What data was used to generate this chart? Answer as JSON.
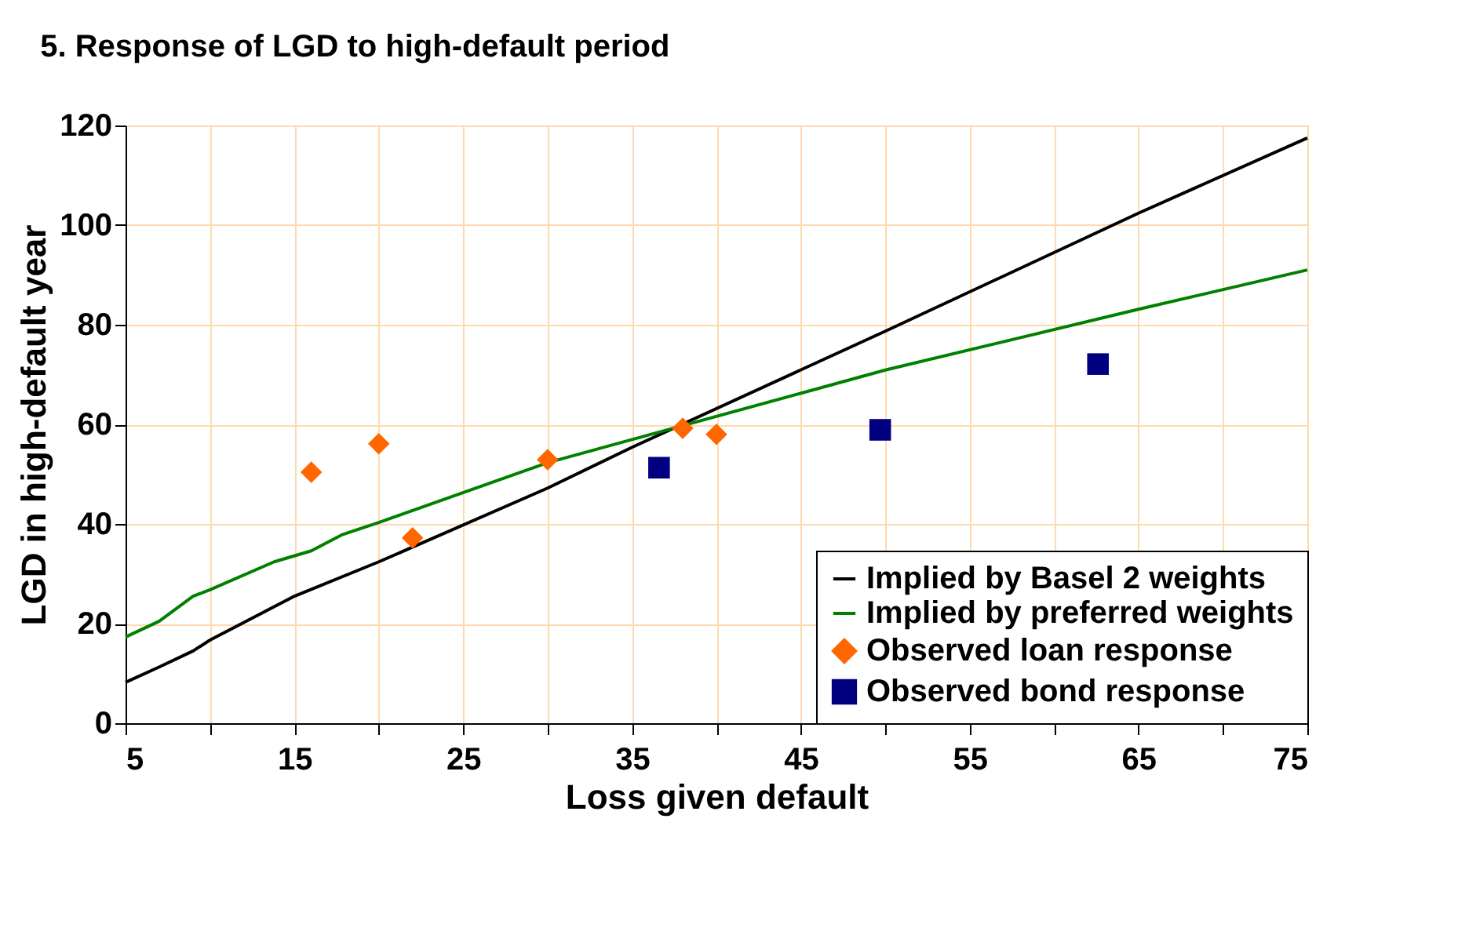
{
  "chart_data": {
    "type": "line",
    "title": "5. Response of LGD to high-default period",
    "xlabel": "Loss given default",
    "ylabel": "LGD in high-default year",
    "xlim": [
      5,
      75
    ],
    "xticks": [
      5,
      {
        "value": 10,
        "label": null
      },
      15,
      {
        "value": 20,
        "label": null
      },
      25,
      {
        "value": 30,
        "label": null
      },
      35,
      {
        "value": 40,
        "label": null
      },
      45,
      {
        "value": 50,
        "label": null
      },
      55,
      {
        "value": 60,
        "label": null
      },
      65,
      {
        "value": 70,
        "label": null
      },
      75
    ],
    "ylim": [
      0,
      120
    ],
    "yticks": [
      0,
      20,
      40,
      60,
      80,
      100,
      120
    ],
    "grid": true,
    "legend": "bottom right",
    "series": [
      {
        "name": "Implied by Basel 2 weights",
        "color": "#000000",
        "x": [
          5,
          7,
          9,
          10,
          15,
          20,
          30,
          35,
          50,
          65,
          75
        ],
        "values": [
          8.2,
          11.3,
          14.5,
          16.7,
          25.5,
          32.4,
          47.2,
          55.4,
          78.7,
          102.4,
          117.5
        ]
      },
      {
        "name": "Implied by preferred weights",
        "color": "#008000",
        "x": [
          5,
          7,
          9,
          10,
          13.8,
          16,
          17.8,
          20,
          30,
          50,
          65,
          75
        ],
        "values": [
          17.3,
          20.5,
          25.5,
          26.8,
          32.4,
          34.6,
          37.8,
          40.3,
          52.3,
          70.9,
          83.1,
          91.0
        ]
      },
      {
        "name": "Observed loan response",
        "type": "scatter",
        "color": "#ff6600",
        "marker": "diamond",
        "x": [
          16,
          20,
          22,
          30,
          38,
          40
        ],
        "values": [
          50.4,
          56.1,
          37.2,
          52.9,
          59.2,
          58.0
        ]
      },
      {
        "name": "Observed bond response",
        "type": "scatter",
        "color": "#000080",
        "marker": "square",
        "x": [
          36.6,
          49.7,
          62.6
        ],
        "values": [
          51.3,
          58.9,
          72.1
        ]
      }
    ]
  }
}
